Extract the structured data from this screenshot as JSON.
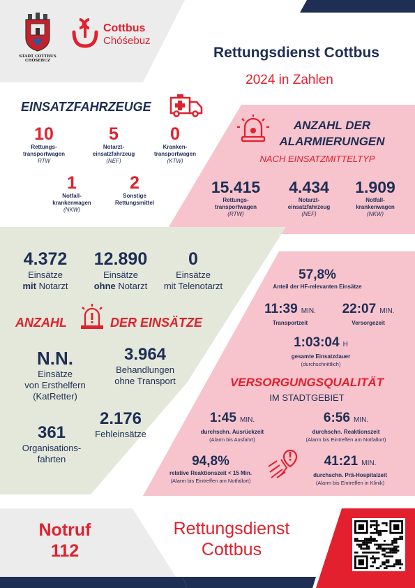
{
  "colors": {
    "navy": "#1e2e55",
    "red": "#e3202d",
    "pink": "#f7c3cc",
    "sage": "#e4e8db"
  },
  "header": {
    "crest_caption_1": "STADT COTTBUS",
    "crest_caption_2": "CHÓŚEBUZ",
    "logo_line1": "Cottbus",
    "logo_line2": "Chóśebuz",
    "title": "Rettungsdienst Cottbus",
    "subtitle": "2024 in Zahlen"
  },
  "fahrzeuge": {
    "heading": "EINSATZFAHRZEUGE",
    "icon": "ambulance-icon",
    "items": [
      {
        "value": "10",
        "label1": "Rettungs-",
        "label2": "transportwagen",
        "abbr": "RTW"
      },
      {
        "value": "5",
        "label1": "Notarzt-",
        "label2": "einsatzfahrzeug",
        "abbr": "(NEF)"
      },
      {
        "value": "0",
        "label1": "Kranken-",
        "label2": "transportwagen",
        "abbr": "(KTW)"
      },
      {
        "value": "1",
        "label1": "Notfall-",
        "label2": "krankenwagen",
        "abbr": "(NKW)"
      },
      {
        "value": "2",
        "label1": "Sonstige",
        "label2": "Rettungsmittel",
        "abbr": ""
      }
    ]
  },
  "alarmierungen": {
    "heading1": "ANZAHL DER",
    "heading2": "ALARMIERUNGEN",
    "subheading": "NACH EINSATZMITTELTYP",
    "icon": "siren-icon",
    "items": [
      {
        "value": "15.415",
        "label1": "Rettungs-",
        "label2": "transportwagen",
        "abbr": "(RTW)"
      },
      {
        "value": "4.434",
        "label1": "Notarzt-",
        "label2": "einsatzfahrzeug",
        "abbr": "(NEF)"
      },
      {
        "value": "1.909",
        "label1": "Notfall-",
        "label2": "krankenwagen",
        "abbr": "(NKW)"
      }
    ]
  },
  "einsaetze": {
    "heading_left": "ANZAHL",
    "heading_right": "DER EINSÄTZE",
    "icon": "alert-light-icon",
    "top": [
      {
        "value": "4.372",
        "line1": "Einsätze",
        "bold": "mit",
        "rest": " Notarzt"
      },
      {
        "value": "12.890",
        "line1": "Einsätze",
        "bold": "ohne",
        "rest": " Notarzt"
      },
      {
        "value": "0",
        "line1": "Einsätze",
        "bold": "",
        "rest": "mit Telenotarzt"
      }
    ],
    "nn": {
      "value": "N.N.",
      "line1": "Einsätze",
      "line2": "von Ersthelfern",
      "line3": "(KatRetter)"
    },
    "behandlungen": {
      "value": "3.964",
      "line1": "Behandlungen",
      "line2": "ohne Transport"
    },
    "organisation": {
      "value": "361",
      "line1": "Organisations-",
      "line2": "fahrten"
    },
    "fehl": {
      "value": "2.176",
      "line1": "Fehleinsätze"
    }
  },
  "zeiten": {
    "hf": {
      "value": "57,8%",
      "label": "Anteil der HF-relevanten Einsätze"
    },
    "transport": {
      "value": "11:39",
      "unit": "MIN.",
      "label": "Transportzeit"
    },
    "versorgung": {
      "value": "22:07",
      "unit": "MIN.",
      "label": "Versorgezeit"
    },
    "gesamt": {
      "value": "1:03:04",
      "unit": "H",
      "label": "gesamte Einsatzdauer",
      "note": "(durchschnittlich)"
    }
  },
  "qualitaet": {
    "heading": "VERSORGUNGSQUALITÄT",
    "subheading": "IM STADTGEBIET",
    "icon": "route-alert-icon",
    "ausrueck": {
      "value": "1:45",
      "unit": "MIN.",
      "label": "durchschn. Ausrückzeit",
      "note": "(Alarm bis Ausfahrt)"
    },
    "reaktion": {
      "value": "6:56",
      "unit": "MIN.",
      "label": "durchschn. Reaktionszeit",
      "note": "(Alarm bis Eintreffen am Notfallort)"
    },
    "relativ": {
      "value": "94,8%",
      "label": "relative Reaktionszeit < 15 Min.",
      "note": "(Alarm bis Eintreffen am Notfallort)"
    },
    "prae": {
      "value": "41:21",
      "unit": "MIN.",
      "label": "durchschn. Prä-Hospitalzeit",
      "note": "(Alarm bis Eintreffen in Klinik)"
    }
  },
  "footer": {
    "notruf": "Notruf",
    "number": "112",
    "name1": "Rettungsdienst",
    "name2": "Cottbus",
    "qr": "qr-code-icon"
  }
}
